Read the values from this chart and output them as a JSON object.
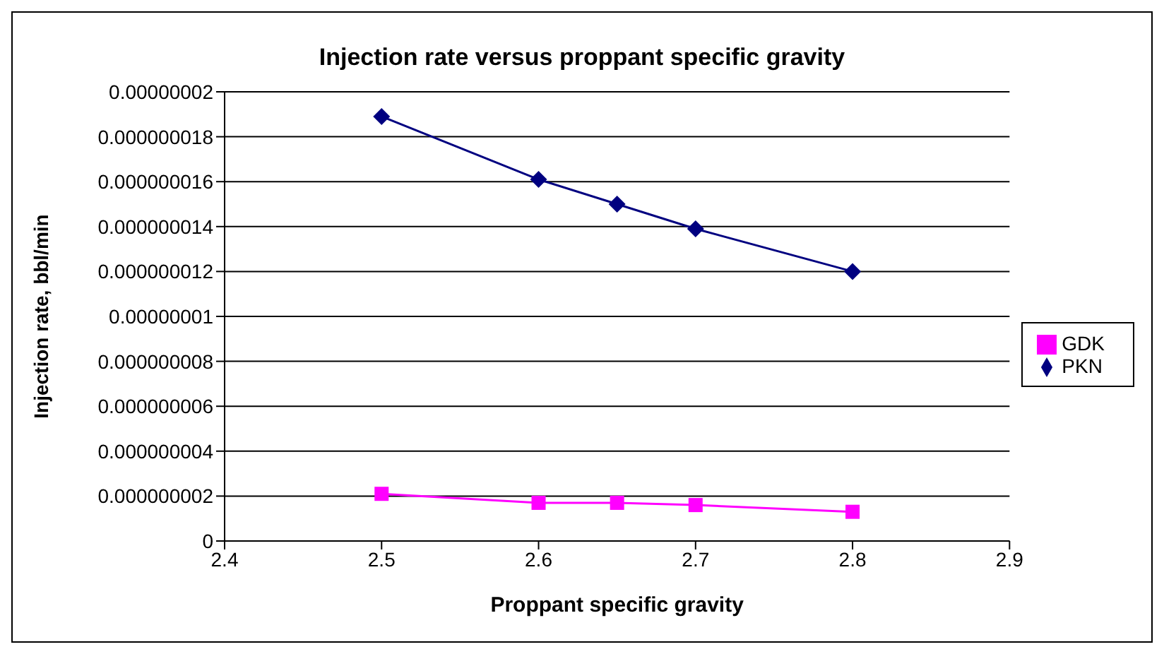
{
  "chart_data": {
    "type": "line",
    "title": "Injection rate versus proppant specific gravity",
    "xlabel": "Proppant specific gravity",
    "ylabel": "Injection rate, bbl/min",
    "x": [
      2.5,
      2.6,
      2.65,
      2.7,
      2.8
    ],
    "series": [
      {
        "name": "PKN",
        "color": "#000080",
        "marker": "diamond",
        "values": [
          1.89e-08,
          1.61e-08,
          1.5e-08,
          1.39e-08,
          1.2e-08
        ]
      },
      {
        "name": "GDK",
        "color": "#ff00ff",
        "marker": "square",
        "values": [
          2.1e-09,
          1.7e-09,
          1.7e-09,
          1.6e-09,
          1.3e-09
        ]
      }
    ],
    "xlim": [
      2.4,
      2.9
    ],
    "xticks": [
      2.4,
      2.5,
      2.6,
      2.7,
      2.8,
      2.9
    ],
    "ylim": [
      0,
      2e-08
    ],
    "yticks": [
      0,
      {
        "value": 2e-09,
        "label": "0.000000002"
      },
      {
        "value": 4e-09,
        "label": "0.000000004"
      },
      {
        "value": 6e-09,
        "label": "0.000000006"
      },
      {
        "value": 8e-09,
        "label": "0.000000008"
      },
      {
        "value": 1e-08,
        "label": "0.00000001"
      },
      {
        "value": 1.2e-08,
        "label": "0.000000012"
      },
      {
        "value": 1.4e-08,
        "label": "0.000000014"
      },
      {
        "value": 1.6e-08,
        "label": "0.000000016"
      },
      {
        "value": 1.8e-08,
        "label": "0.000000018"
      },
      {
        "value": 2e-08,
        "label": "0.00000002"
      }
    ],
    "grid": "y",
    "legend": "right",
    "line_style": "solid"
  }
}
